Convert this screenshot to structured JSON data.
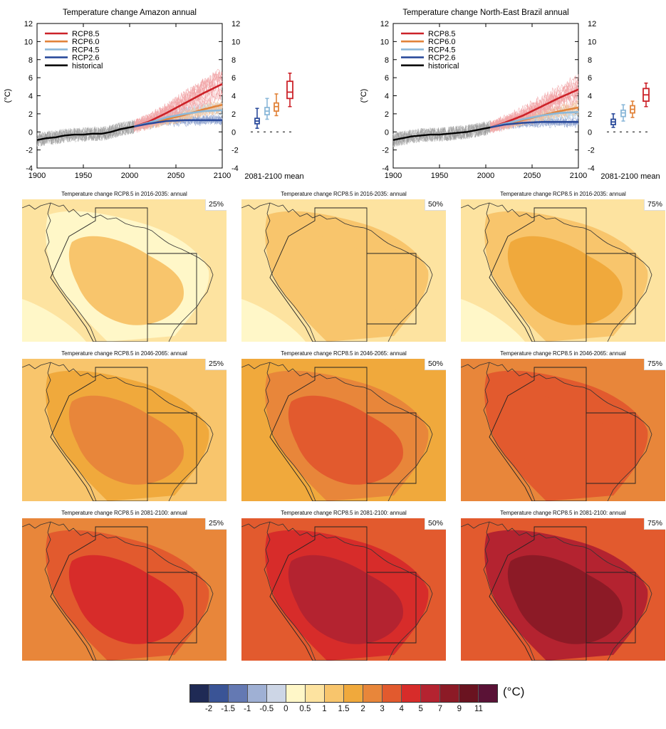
{
  "colors": {
    "RCP8.5": "#cc2229",
    "RCP6.0": "#e1833a",
    "RCP4.5": "#8bb8d9",
    "RCP2.6": "#2b4b9b",
    "historical": "#000000"
  },
  "timeseries": [
    {
      "title": "Temperature change Amazon annual",
      "ylabel": "(°C)",
      "xlabel_box": "2081-2100 mean",
      "legend": [
        "RCP8.5",
        "RCP6.0",
        "RCP4.5",
        "RCP2.6",
        "historical"
      ]
    },
    {
      "title": "Temperature change North-East Brazil annual",
      "ylabel": "(°C)",
      "xlabel_box": "2081-2100 mean",
      "legend": [
        "RCP8.5",
        "RCP6.0",
        "RCP4.5",
        "RCP2.6",
        "historical"
      ]
    }
  ],
  "maps": {
    "rows": [
      {
        "period": "2016-2035",
        "titles": [
          "Temperature change RCP8.5 in 2016-2035: annual",
          "Temperature change RCP8.5 in 2016-2035: annual",
          "Temperature change RCP8.5 in 2016-2035: annual"
        ]
      },
      {
        "period": "2046-2065",
        "titles": [
          "Temperature change RCP8.5 in 2046-2065: annual",
          "Temperature change RCP8.5 in 2046-2065: annual",
          "Temperature change RCP8.5 in 2046-2065: annual"
        ]
      },
      {
        "period": "2081-2100",
        "titles": [
          "Temperature change RCP8.5 in 2081-2100: annual",
          "Temperature change RCP8.5 in 2081-2100: annual",
          "Temperature change RCP8.5 in 2081-2100: annual"
        ]
      }
    ],
    "percentiles": [
      "25%",
      "50%",
      "75%"
    ],
    "fill_levels": [
      [
        [
          6,
          5,
          7
        ],
        [
          6,
          7,
          7
        ],
        [
          6,
          7,
          8
        ]
      ],
      [
        [
          7,
          8,
          9
        ],
        [
          8,
          9,
          10
        ],
        [
          9,
          10,
          10
        ]
      ],
      [
        [
          9,
          10,
          11
        ],
        [
          10,
          11,
          12
        ],
        [
          10,
          12,
          13
        ]
      ]
    ]
  },
  "colorbar": {
    "unit": "(°C)",
    "labels": [
      "-2",
      "-1.5",
      "-1",
      "-0.5",
      "0",
      "0.5",
      "1",
      "1.5",
      "2",
      "3",
      "4",
      "5",
      "7",
      "9",
      "11"
    ],
    "colors": [
      "#1f2a55",
      "#3a5496",
      "#6479b3",
      "#9fb0d4",
      "#cdd6e6",
      "#fff7c8",
      "#fde3a0",
      "#f8c56c",
      "#f0a93c",
      "#e8863a",
      "#e25a2e",
      "#d72c2a",
      "#b42330",
      "#8c1a26",
      "#6a1320",
      "#5a1236"
    ]
  },
  "chart_data": [
    {
      "type": "line",
      "title": "Temperature change Amazon annual",
      "xlabel": "",
      "ylabel": "(°C)",
      "xlim": [
        1900,
        2100
      ],
      "ylim": [
        -4,
        12
      ],
      "xticks": [
        1900,
        1950,
        2000,
        2050,
        2100
      ],
      "yticks": [
        -4,
        -2,
        0,
        2,
        4,
        6,
        8,
        10,
        12
      ],
      "series": [
        {
          "name": "historical",
          "x": [
            1900,
            1910,
            1920,
            1930,
            1940,
            1950,
            1960,
            1970,
            1980,
            1990,
            2000,
            2005
          ],
          "y": [
            -0.9,
            -0.7,
            -0.6,
            -0.4,
            -0.3,
            -0.3,
            -0.2,
            -0.2,
            0.0,
            0.3,
            0.5,
            0.6
          ]
        },
        {
          "name": "RCP8.5",
          "x": [
            2005,
            2020,
            2040,
            2060,
            2080,
            2100
          ],
          "y": [
            0.6,
            1.1,
            2.1,
            3.2,
            4.3,
            5.3
          ]
        },
        {
          "name": "RCP6.0",
          "x": [
            2005,
            2020,
            2040,
            2060,
            2080,
            2100
          ],
          "y": [
            0.6,
            0.9,
            1.4,
            1.9,
            2.5,
            3.0
          ]
        },
        {
          "name": "RCP4.5",
          "x": [
            2005,
            2020,
            2040,
            2060,
            2080,
            2100
          ],
          "y": [
            0.6,
            1.0,
            1.6,
            2.0,
            2.3,
            2.4
          ]
        },
        {
          "name": "RCP2.6",
          "x": [
            2005,
            2020,
            2040,
            2060,
            2080,
            2100
          ],
          "y": [
            0.6,
            0.9,
            1.2,
            1.3,
            1.3,
            1.3
          ]
        }
      ],
      "box_summary": {
        "label": "2081-2100 mean",
        "boxes": [
          {
            "name": "RCP2.6",
            "min": 0.4,
            "q1": 0.9,
            "median": 1.2,
            "q3": 1.5,
            "max": 2.6
          },
          {
            "name": "RCP4.5",
            "min": 1.4,
            "q1": 1.9,
            "median": 2.3,
            "q3": 2.7,
            "max": 3.7
          },
          {
            "name": "RCP6.0",
            "min": 1.8,
            "q1": 2.3,
            "median": 2.8,
            "q3": 3.2,
            "max": 4.2
          },
          {
            "name": "RCP8.5",
            "min": 2.8,
            "q1": 3.7,
            "median": 4.4,
            "q3": 5.6,
            "max": 6.5
          }
        ]
      }
    },
    {
      "type": "line",
      "title": "Temperature change North-East Brazil annual",
      "xlabel": "",
      "ylabel": "(°C)",
      "xlim": [
        1900,
        2100
      ],
      "ylim": [
        -4,
        12
      ],
      "xticks": [
        1900,
        1950,
        2000,
        2050,
        2100
      ],
      "yticks": [
        -4,
        -2,
        0,
        2,
        4,
        6,
        8,
        10,
        12
      ],
      "series": [
        {
          "name": "historical",
          "x": [
            1900,
            1910,
            1920,
            1930,
            1940,
            1950,
            1960,
            1970,
            1980,
            1990,
            2000,
            2005
          ],
          "y": [
            -0.9,
            -0.7,
            -0.5,
            -0.4,
            -0.3,
            -0.3,
            -0.2,
            -0.1,
            0.0,
            0.2,
            0.4,
            0.5
          ]
        },
        {
          "name": "RCP8.5",
          "x": [
            2005,
            2020,
            2040,
            2060,
            2080,
            2100
          ],
          "y": [
            0.5,
            1.0,
            1.8,
            2.8,
            3.8,
            4.7
          ]
        },
        {
          "name": "RCP6.0",
          "x": [
            2005,
            2020,
            2040,
            2060,
            2080,
            2100
          ],
          "y": [
            0.5,
            0.8,
            1.3,
            1.8,
            2.3,
            2.7
          ]
        },
        {
          "name": "RCP4.5",
          "x": [
            2005,
            2020,
            2040,
            2060,
            2080,
            2100
          ],
          "y": [
            0.5,
            0.9,
            1.4,
            1.8,
            2.1,
            2.2
          ]
        },
        {
          "name": "RCP2.6",
          "x": [
            2005,
            2020,
            2040,
            2060,
            2080,
            2100
          ],
          "y": [
            0.5,
            0.8,
            1.0,
            1.1,
            1.1,
            1.1
          ]
        }
      ],
      "box_summary": {
        "label": "2081-2100 mean",
        "boxes": [
          {
            "name": "RCP2.6",
            "min": 0.5,
            "q1": 0.8,
            "median": 1.1,
            "q3": 1.4,
            "max": 2.0
          },
          {
            "name": "RCP4.5",
            "min": 1.2,
            "q1": 1.7,
            "median": 2.1,
            "q3": 2.4,
            "max": 3.0
          },
          {
            "name": "RCP6.0",
            "min": 1.6,
            "q1": 2.1,
            "median": 2.5,
            "q3": 2.9,
            "max": 3.4
          },
          {
            "name": "RCP8.5",
            "min": 2.8,
            "q1": 3.4,
            "median": 4.1,
            "q3": 4.8,
            "max": 5.4
          }
        ]
      }
    }
  ]
}
